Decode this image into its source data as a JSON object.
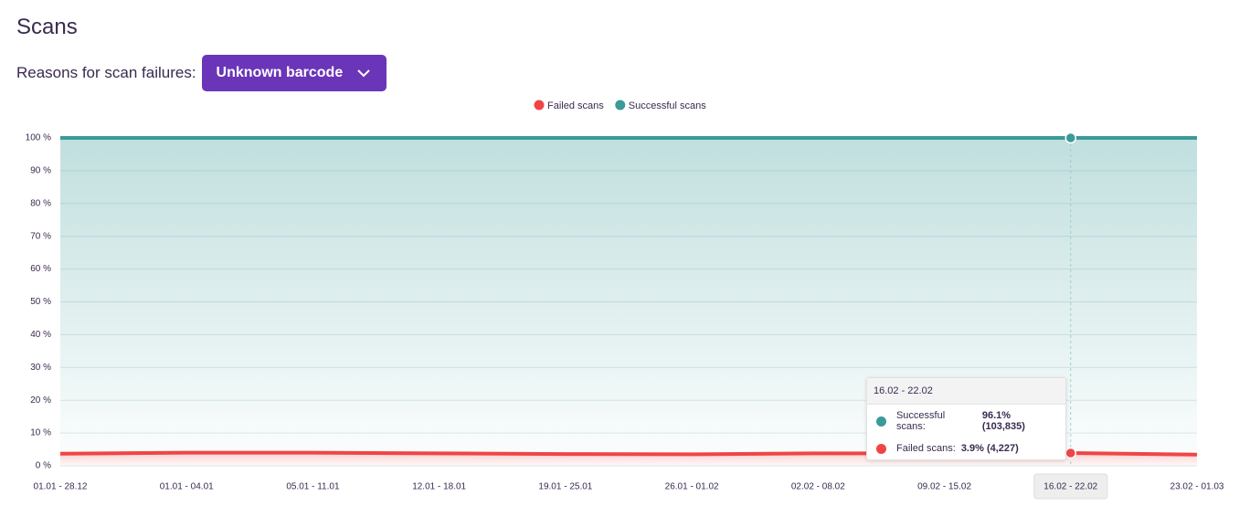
{
  "page": {
    "title": "Scans",
    "filter_label": "Reasons for scan failures:",
    "filter_value": "Unknown barcode"
  },
  "chart_data": {
    "type": "stacked-area",
    "categories": [
      "01.01 - 28.12",
      "01.01 - 04.01",
      "05.01 - 11.01",
      "12.01 - 18.01",
      "19.01 - 25.01",
      "26.01 - 01.02",
      "02.02 - 08.02",
      "09.02 - 15.02",
      "16.02 - 22.02",
      "23.02 - 01.03"
    ],
    "series": [
      {
        "name": "Failed scans",
        "color": "#f04545",
        "values": [
          3.7,
          4.0,
          4.0,
          3.8,
          3.6,
          3.5,
          3.8,
          3.8,
          3.9,
          3.4
        ]
      },
      {
        "name": "Successful scans",
        "color": "#3a9b98",
        "values": [
          96.3,
          96.0,
          96.0,
          96.2,
          96.4,
          96.5,
          96.2,
          96.2,
          96.1,
          96.6
        ]
      }
    ],
    "ylim": [
      0,
      100
    ],
    "yticks": [
      {
        "value": 0,
        "label": "0 %"
      },
      {
        "value": 10,
        "label": "10 %"
      },
      {
        "value": 20,
        "label": "20 %"
      },
      {
        "value": 30,
        "label": "30 %"
      },
      {
        "value": 40,
        "label": "40 %"
      },
      {
        "value": 50,
        "label": "50 %"
      },
      {
        "value": 60,
        "label": "60 %"
      },
      {
        "value": 70,
        "label": "70 %"
      },
      {
        "value": 80,
        "label": "80 %"
      },
      {
        "value": 90,
        "label": "90 %"
      },
      {
        "value": 100,
        "label": "100 %"
      }
    ],
    "grid": true,
    "legend": "top",
    "active_index": 8,
    "tooltip": {
      "title": "16.02 - 22.02",
      "items": [
        {
          "name": "Successful scans:",
          "value": "96.1% (103,835)",
          "color": "#3a9b98"
        },
        {
          "name": "Failed scans:",
          "value": "3.9% (4,227)",
          "color": "#f04545"
        }
      ]
    }
  }
}
